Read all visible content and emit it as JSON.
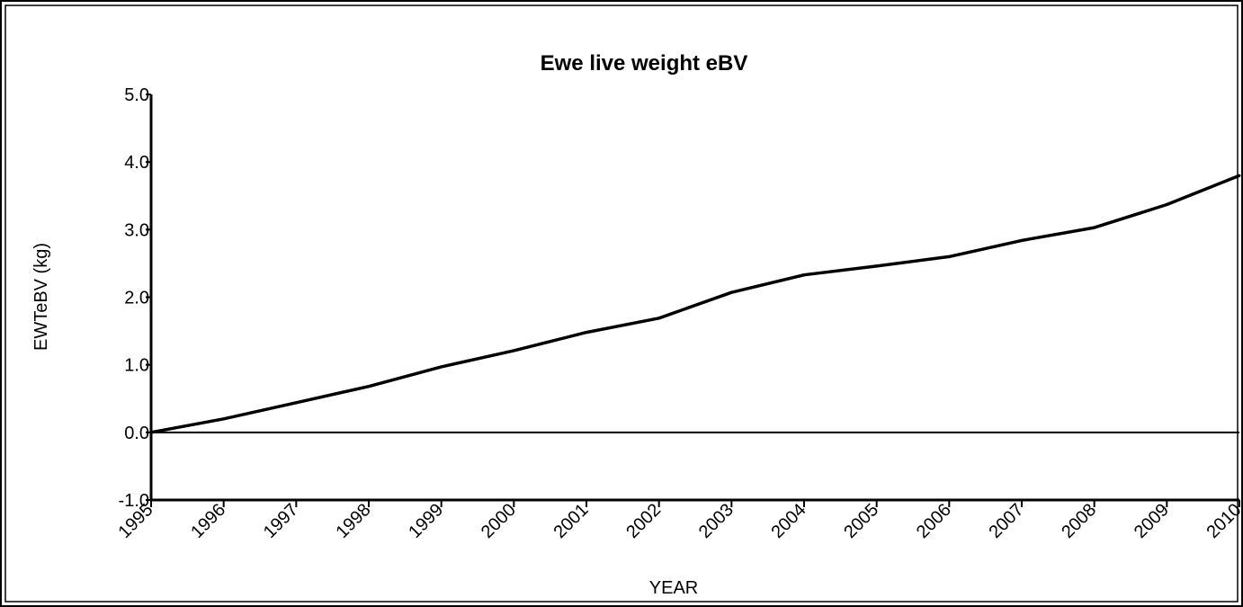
{
  "chart_data": {
    "type": "line",
    "title": "Ewe live weight eBV",
    "xlabel": "YEAR",
    "ylabel": "EWTeBV (kg)",
    "categories": [
      "1995",
      "1996",
      "1997",
      "1998",
      "1999",
      "2000",
      "2001",
      "2002",
      "2003",
      "2004",
      "2005",
      "2006",
      "2007",
      "2008",
      "2009",
      "2010"
    ],
    "series": [
      {
        "values": [
          0.0,
          0.2,
          0.44,
          0.68,
          0.97,
          1.21,
          1.48,
          1.69,
          2.07,
          2.33,
          2.46,
          2.6,
          2.84,
          3.03,
          3.37,
          3.8
        ]
      }
    ],
    "ylim": [
      -1.0,
      5.0
    ],
    "yticks": [
      "5.0",
      "4.0",
      "3.0",
      "2.0",
      "1.0",
      "0.0",
      "-1.0"
    ],
    "grid": false,
    "legend": "none",
    "colors": {
      "line": "#000000",
      "zero_line": "#000000",
      "frame": "#000000"
    }
  }
}
